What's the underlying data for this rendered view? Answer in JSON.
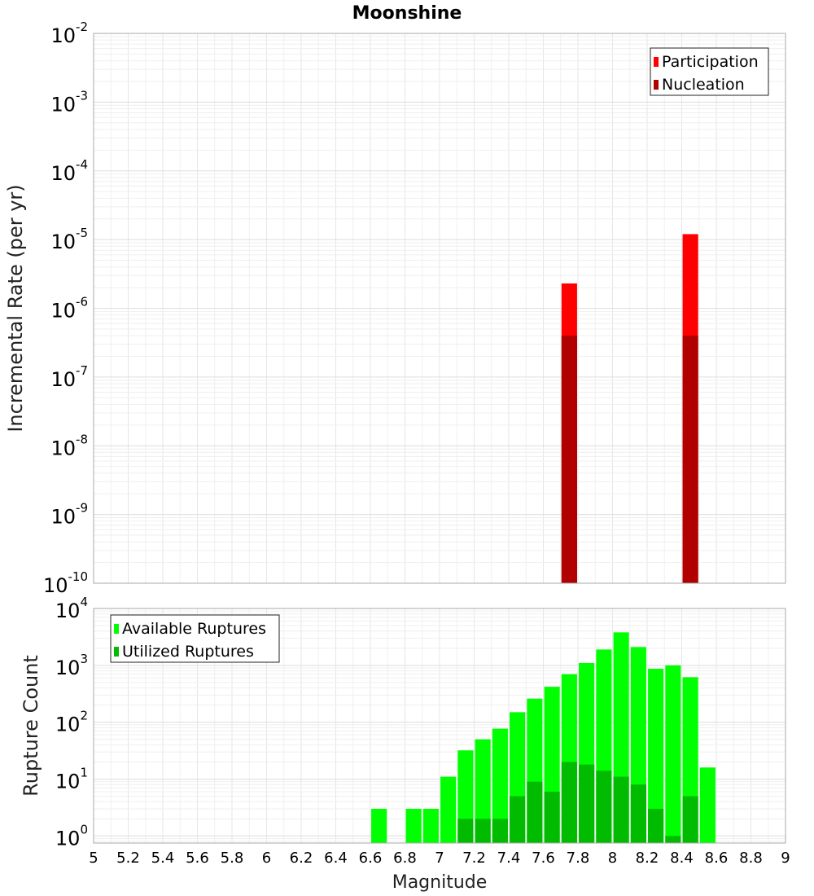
{
  "chart_data": [
    {
      "type": "bar",
      "title": "Moonshine",
      "ylabel": "Incremental Rate (per yr)",
      "xlabel": "",
      "yscale": "log",
      "ylim": [
        1e-10,
        0.01
      ],
      "xlim": [
        5,
        9
      ],
      "bar_width": 0.09,
      "yticks": [
        {
          "base": "10",
          "exp": "-10",
          "value": 1e-10
        },
        {
          "base": "10",
          "exp": "-9",
          "value": 1e-09
        },
        {
          "base": "10",
          "exp": "-8",
          "value": 1e-08
        },
        {
          "base": "10",
          "exp": "-7",
          "value": 1e-07
        },
        {
          "base": "10",
          "exp": "-6",
          "value": 1e-06
        },
        {
          "base": "10",
          "exp": "-5",
          "value": 1e-05
        },
        {
          "base": "10",
          "exp": "-4",
          "value": 0.0001
        },
        {
          "base": "10",
          "exp": "-3",
          "value": 0.001
        },
        {
          "base": "10",
          "exp": "-2",
          "value": 0.01
        }
      ],
      "legend": {
        "position": "top-right"
      },
      "grid": true,
      "series": [
        {
          "name": "Participation",
          "color": "#ff0000",
          "x": [
            7.75,
            8.45
          ],
          "values": [
            2.3e-06,
            1.2e-05
          ]
        },
        {
          "name": "Nucleation",
          "color": "#b00000",
          "x": [
            7.75,
            8.45
          ],
          "values": [
            4e-07,
            4e-07
          ]
        }
      ]
    },
    {
      "type": "bar",
      "title": "",
      "ylabel": "Rupture Count",
      "xlabel": "Magnitude",
      "yscale": "log",
      "ylim": [
        0.75,
        10000
      ],
      "xlim": [
        5,
        9
      ],
      "bar_width": 0.09,
      "yticks": [
        {
          "base": "10",
          "exp": "0",
          "value": 1
        },
        {
          "base": "10",
          "exp": "1",
          "value": 10
        },
        {
          "base": "10",
          "exp": "2",
          "value": 100
        },
        {
          "base": "10",
          "exp": "3",
          "value": 1000
        },
        {
          "base": "10",
          "exp": "4",
          "value": 10000
        }
      ],
      "xticks": [
        "5",
        "5.2",
        "5.4",
        "5.6",
        "5.8",
        "6",
        "6.2",
        "6.4",
        "6.6",
        "6.8",
        "7",
        "7.2",
        "7.4",
        "7.6",
        "7.8",
        "8",
        "8.2",
        "8.4",
        "8.6",
        "8.8",
        "9"
      ],
      "legend": {
        "position": "top-left"
      },
      "grid": true,
      "series": [
        {
          "name": "Available Ruptures",
          "color": "#00ff00",
          "x": [
            6.65,
            6.85,
            6.95,
            7.05,
            7.15,
            7.25,
            7.35,
            7.45,
            7.55,
            7.65,
            7.75,
            7.85,
            7.95,
            8.05,
            8.15,
            8.25,
            8.35,
            8.45,
            8.55
          ],
          "values": [
            3,
            3,
            3,
            11,
            32,
            50,
            77,
            150,
            260,
            420,
            700,
            1100,
            1900,
            3800,
            2100,
            870,
            1000,
            620,
            16
          ]
        },
        {
          "name": "Utilized Ruptures",
          "color": "#00bb00",
          "x": [
            7.15,
            7.25,
            7.35,
            7.45,
            7.55,
            7.65,
            7.75,
            7.85,
            7.95,
            8.05,
            8.15,
            8.25,
            8.35,
            8.45
          ],
          "values": [
            2,
            2,
            2,
            5,
            9,
            6,
            20,
            18,
            14,
            11,
            8,
            3,
            1,
            5
          ]
        }
      ]
    }
  ]
}
